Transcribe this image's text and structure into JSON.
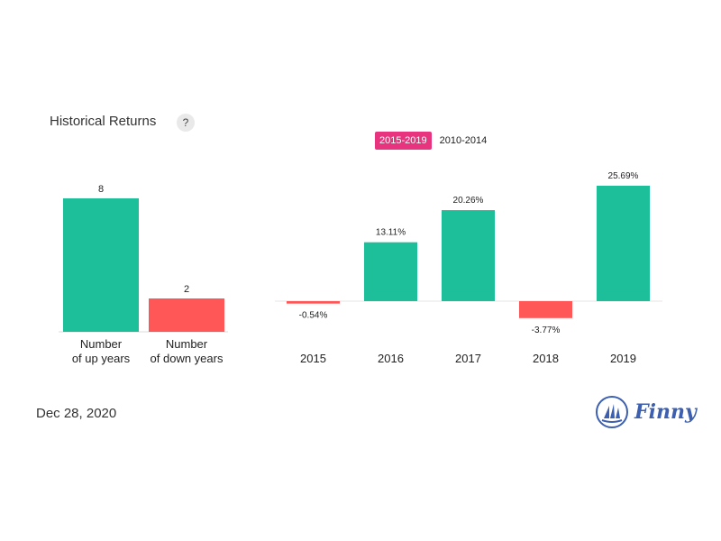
{
  "header": {
    "title": "Historical Returns",
    "help_label": "?"
  },
  "tabs": [
    {
      "label": "2015-2019",
      "active": true
    },
    {
      "label": "2010-2014",
      "active": false
    }
  ],
  "footer": {
    "date": "Dec 28, 2020",
    "brand": "Finny"
  },
  "colors": {
    "positive": "#1dbf9b",
    "negative": "#ff5757",
    "accent": "#e8347e",
    "brand": "#3c5fb0"
  },
  "chart_data": [
    {
      "type": "bar",
      "categories": [
        "Number\nof up years",
        "Number\nof down years"
      ],
      "values": [
        8,
        2
      ],
      "data_labels": [
        "8",
        "2"
      ],
      "ylim": [
        0,
        8
      ]
    },
    {
      "type": "bar",
      "categories": [
        "2015",
        "2016",
        "2017",
        "2018",
        "2019"
      ],
      "values": [
        -0.54,
        13.11,
        20.26,
        -3.77,
        25.69
      ],
      "data_labels": [
        "-0.54%",
        "13.11%",
        "20.26%",
        "-3.77%",
        "25.69%"
      ],
      "ylim": [
        -4,
        26
      ]
    }
  ]
}
